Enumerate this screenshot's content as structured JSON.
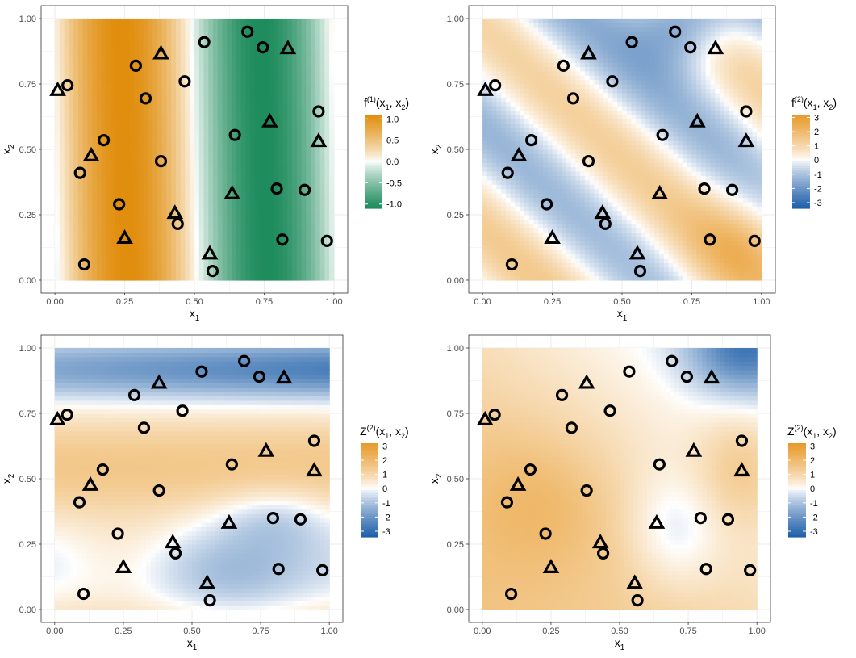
{
  "chart_data": [
    {
      "type": "heatmap",
      "panel": "top-left",
      "xlabel": "x",
      "xlabel_sub": "1",
      "ylabel": "x",
      "ylabel_sub": "2",
      "xlim": [
        0,
        1
      ],
      "ylim": [
        0,
        1
      ],
      "xticks": [
        "0.00",
        "0.25",
        "0.50",
        "0.75",
        "1.00"
      ],
      "yticks": [
        "0.00",
        "0.25",
        "0.50",
        "0.75",
        "1.00"
      ],
      "legend": {
        "title_main": "f",
        "title_sup": "(1)",
        "title_args": "(x",
        "title_args_end": ")",
        "placement": "right",
        "range": [
          -1.1,
          1.1
        ],
        "ticks": [
          1.0,
          0.5,
          0.0,
          -0.5,
          -1.0
        ],
        "tick_labels": [
          "1.0",
          "0.5",
          "0.0",
          "-0.5",
          "-1.0"
        ]
      },
      "palette": {
        "high": "#e08c0a",
        "mid": "#ffffff",
        "low": "#1b8a5a"
      },
      "surface": "sin(2*pi*x1) with slight x2 warp",
      "source": "fn1"
    },
    {
      "type": "heatmap",
      "panel": "top-right",
      "xlabel": "x",
      "xlabel_sub": "1",
      "ylabel": "x",
      "ylabel_sub": "2",
      "xlim": [
        0,
        1
      ],
      "ylim": [
        0,
        1
      ],
      "xticks": [
        "0.00",
        "0.25",
        "0.50",
        "0.75",
        "1.00"
      ],
      "yticks": [
        "0.00",
        "0.25",
        "0.50",
        "0.75",
        "1.00"
      ],
      "legend": {
        "title_main": "f",
        "title_sup": "(2)",
        "title_args": "(x",
        "title_args_end": ")",
        "placement": "right",
        "range": [
          -3.4,
          3.2
        ],
        "ticks": [
          3,
          2,
          1,
          0,
          -1,
          -2,
          -3
        ],
        "tick_labels": [
          "3",
          "2",
          "1",
          "0",
          "-1",
          "-2",
          "-3"
        ]
      },
      "palette": {
        "high": "#e89a2a",
        "mid": "#ffffff",
        "low": "#1f5fa8"
      },
      "source": "fn2"
    },
    {
      "type": "heatmap",
      "panel": "bottom-left",
      "xlabel": "x",
      "xlabel_sub": "1",
      "ylabel": "x",
      "ylabel_sub": "2",
      "xlim": [
        0,
        1
      ],
      "ylim": [
        0,
        1
      ],
      "xticks": [
        "0.00",
        "0.25",
        "0.50",
        "0.75",
        "1.00"
      ],
      "yticks": [
        "0.00",
        "0.25",
        "0.50",
        "0.75",
        "1.00"
      ],
      "legend": {
        "title_main": "Z",
        "title_sup": "(2)",
        "title_args": "(x",
        "title_args_end": ")",
        "placement": "right",
        "range": [
          -3.4,
          3.2
        ],
        "ticks": [
          3,
          2,
          1,
          0,
          -1,
          -2,
          -3
        ],
        "tick_labels": [
          "3",
          "2",
          "1",
          "0",
          "-1",
          "-2",
          "-3"
        ]
      },
      "palette": {
        "high": "#e89a2a",
        "mid": "#ffffff",
        "low": "#1f5fa8"
      },
      "source": "fn3"
    },
    {
      "type": "heatmap",
      "panel": "bottom-right",
      "xlabel": "x",
      "xlabel_sub": "1",
      "ylabel": "x",
      "ylabel_sub": "2",
      "xlim": [
        0,
        1
      ],
      "ylim": [
        0,
        1
      ],
      "xticks": [
        "0.00",
        "0.25",
        "0.50",
        "0.75",
        "1.00"
      ],
      "yticks": [
        "0.00",
        "0.25",
        "0.50",
        "0.75",
        "1.00"
      ],
      "legend": {
        "title_main": "Z",
        "title_sup": "(2)",
        "title_args": "(x",
        "title_args_end": ")",
        "placement": "right",
        "range": [
          -3.4,
          3.2
        ],
        "ticks": [
          3,
          2,
          1,
          0,
          -1,
          -2,
          -3
        ],
        "tick_labels": [
          "3",
          "2",
          "1",
          "0",
          "-1",
          "-2",
          "-3"
        ]
      },
      "palette": {
        "high": "#e89a2a",
        "mid": "#ffffff",
        "low": "#1f5fa8"
      },
      "source": "fn4"
    }
  ],
  "points": {
    "circles": [
      [
        0.045,
        0.745
      ],
      [
        0.09,
        0.41
      ],
      [
        0.105,
        0.06
      ],
      [
        0.175,
        0.535
      ],
      [
        0.23,
        0.29
      ],
      [
        0.29,
        0.82
      ],
      [
        0.325,
        0.695
      ],
      [
        0.38,
        0.455
      ],
      [
        0.44,
        0.215
      ],
      [
        0.465,
        0.76
      ],
      [
        0.535,
        0.91
      ],
      [
        0.565,
        0.035
      ],
      [
        0.645,
        0.555
      ],
      [
        0.69,
        0.95
      ],
      [
        0.745,
        0.89
      ],
      [
        0.795,
        0.35
      ],
      [
        0.815,
        0.155
      ],
      [
        0.895,
        0.345
      ],
      [
        0.945,
        0.645
      ],
      [
        0.975,
        0.15
      ]
    ],
    "triangles": [
      [
        0.01,
        0.725
      ],
      [
        0.13,
        0.475
      ],
      [
        0.25,
        0.16
      ],
      [
        0.38,
        0.865
      ],
      [
        0.43,
        0.255
      ],
      [
        0.555,
        0.1
      ],
      [
        0.635,
        0.33
      ],
      [
        0.77,
        0.605
      ],
      [
        0.835,
        0.885
      ],
      [
        0.945,
        0.53
      ]
    ]
  }
}
